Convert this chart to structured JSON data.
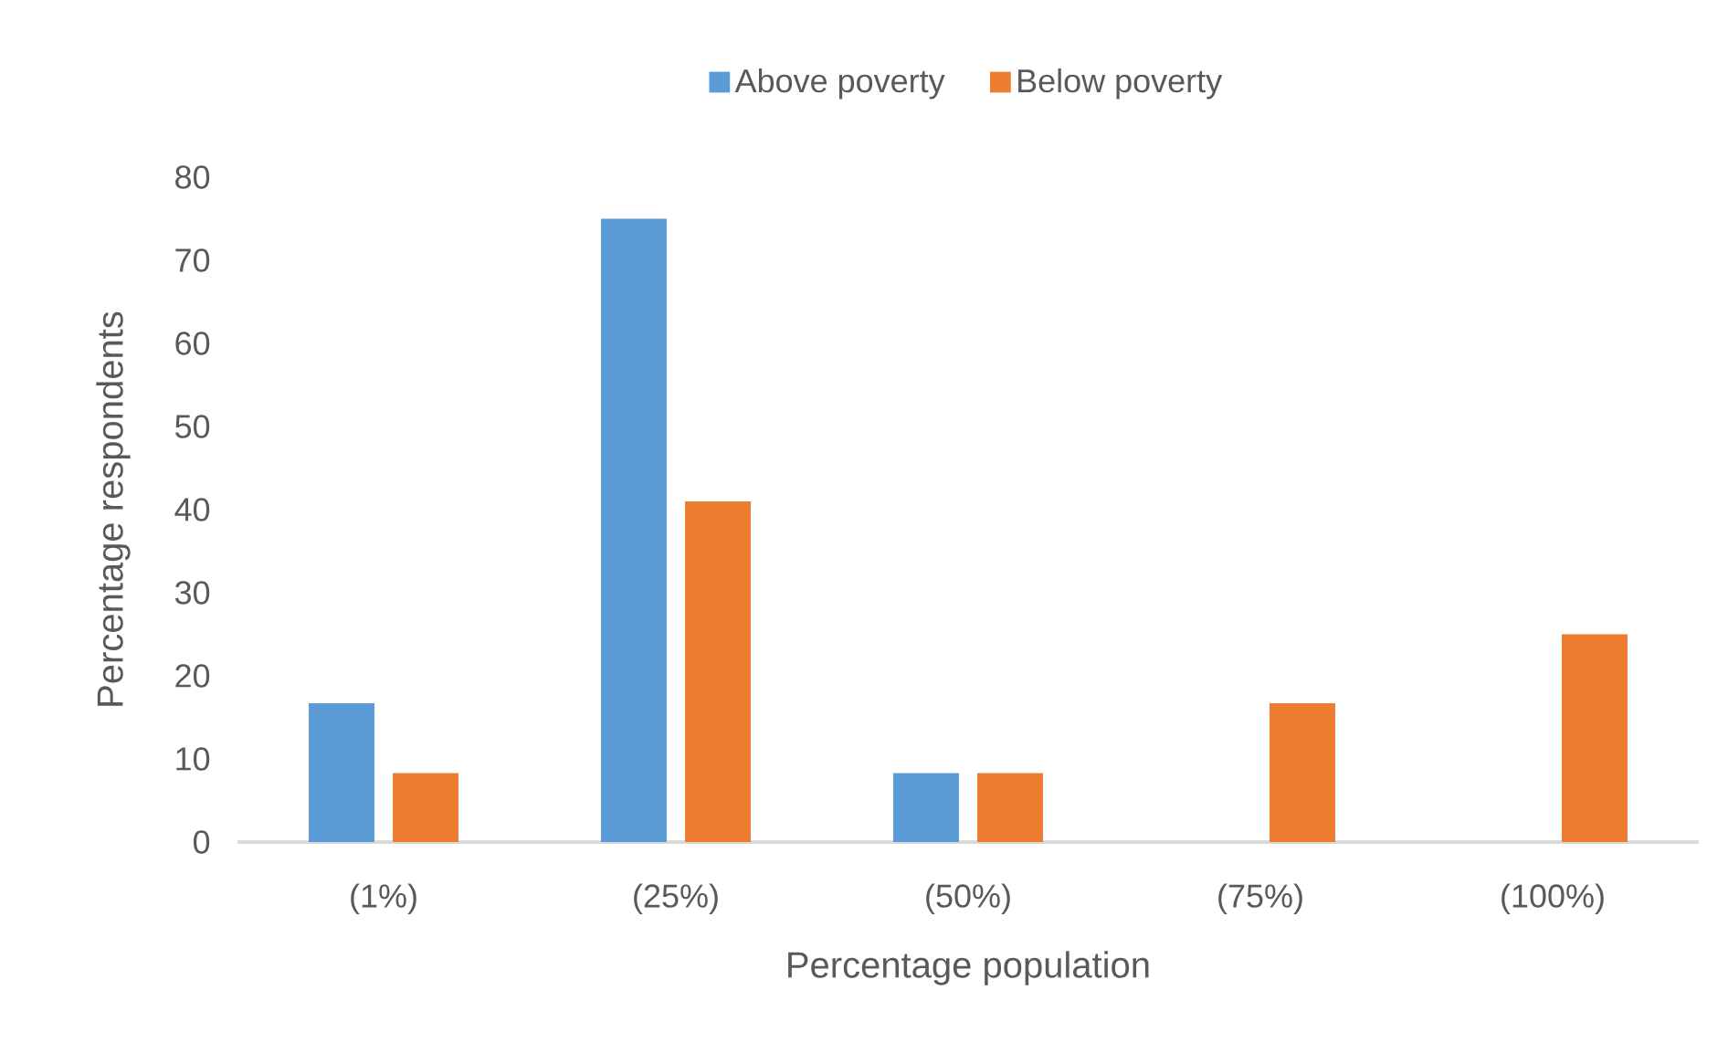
{
  "chart_data": {
    "type": "bar",
    "xlabel": "Percentage population",
    "ylabel": "Percentage respondents",
    "categories": [
      "(1%)",
      "(25%)",
      "(50%)",
      "(75%)",
      "(100%)"
    ],
    "series": [
      {
        "name": "Above poverty",
        "color": "#5b9bd5",
        "values": [
          16.7,
          75,
          8.3,
          0,
          0
        ]
      },
      {
        "name": "Below poverty",
        "color": "#ed7d31",
        "values": [
          8.3,
          41,
          8.3,
          16.7,
          25
        ]
      }
    ],
    "ylim": [
      0,
      80
    ],
    "yticks": [
      0,
      10,
      20,
      30,
      40,
      50,
      60,
      70,
      80
    ],
    "legend": "top"
  }
}
